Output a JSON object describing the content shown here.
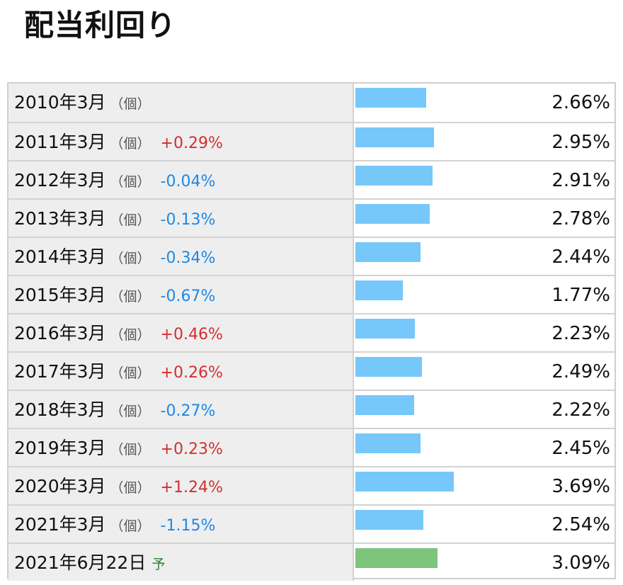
{
  "page": {
    "title": "配当利回り"
  },
  "colors": {
    "bar": "#76c7fa",
    "forecast_bar": "#7cc57a",
    "increase": "#d32f2f",
    "decrease": "#1e88e5",
    "forecast_mark": "#2e7d32"
  },
  "chart_data": {
    "type": "bar",
    "orientation": "horizontal",
    "title": "配当利回り",
    "rows": [
      {
        "period": "2010年3月",
        "unit": "（個）",
        "change": "",
        "value": "2.66%",
        "y": 2.66,
        "forecast": false
      },
      {
        "period": "2011年3月",
        "unit": "（個）",
        "change": "+0.29%",
        "value": "2.95%",
        "y": 2.95,
        "forecast": false
      },
      {
        "period": "2012年3月",
        "unit": "（個）",
        "change": "-0.04%",
        "value": "2.91%",
        "y": 2.91,
        "forecast": false
      },
      {
        "period": "2013年3月",
        "unit": "（個）",
        "change": "-0.13%",
        "value": "2.78%",
        "y": 2.78,
        "forecast": false
      },
      {
        "period": "2014年3月",
        "unit": "（個）",
        "change": "-0.34%",
        "value": "2.44%",
        "y": 2.44,
        "forecast": false
      },
      {
        "period": "2015年3月",
        "unit": "（個）",
        "change": "-0.67%",
        "value": "1.77%",
        "y": 1.77,
        "forecast": false
      },
      {
        "period": "2016年3月",
        "unit": "（個）",
        "change": "+0.46%",
        "value": "2.23%",
        "y": 2.23,
        "forecast": false
      },
      {
        "period": "2017年3月",
        "unit": "（個）",
        "change": "+0.26%",
        "value": "2.49%",
        "y": 2.49,
        "forecast": false
      },
      {
        "period": "2018年3月",
        "unit": "（個）",
        "change": "-0.27%",
        "value": "2.22%",
        "y": 2.22,
        "forecast": false
      },
      {
        "period": "2019年3月",
        "unit": "（個）",
        "change": "+0.23%",
        "value": "2.45%",
        "y": 2.45,
        "forecast": false
      },
      {
        "period": "2020年3月",
        "unit": "（個）",
        "change": "+1.24%",
        "value": "3.69%",
        "y": 3.69,
        "forecast": false
      },
      {
        "period": "2021年3月",
        "unit": "（個）",
        "change": "-1.15%",
        "value": "2.54%",
        "y": 2.54,
        "forecast": false
      },
      {
        "period": "2021年6月22日",
        "unit": "",
        "change": "",
        "value": "3.09%",
        "y": 3.09,
        "forecast": true,
        "forecast_mark": "予"
      }
    ]
  }
}
